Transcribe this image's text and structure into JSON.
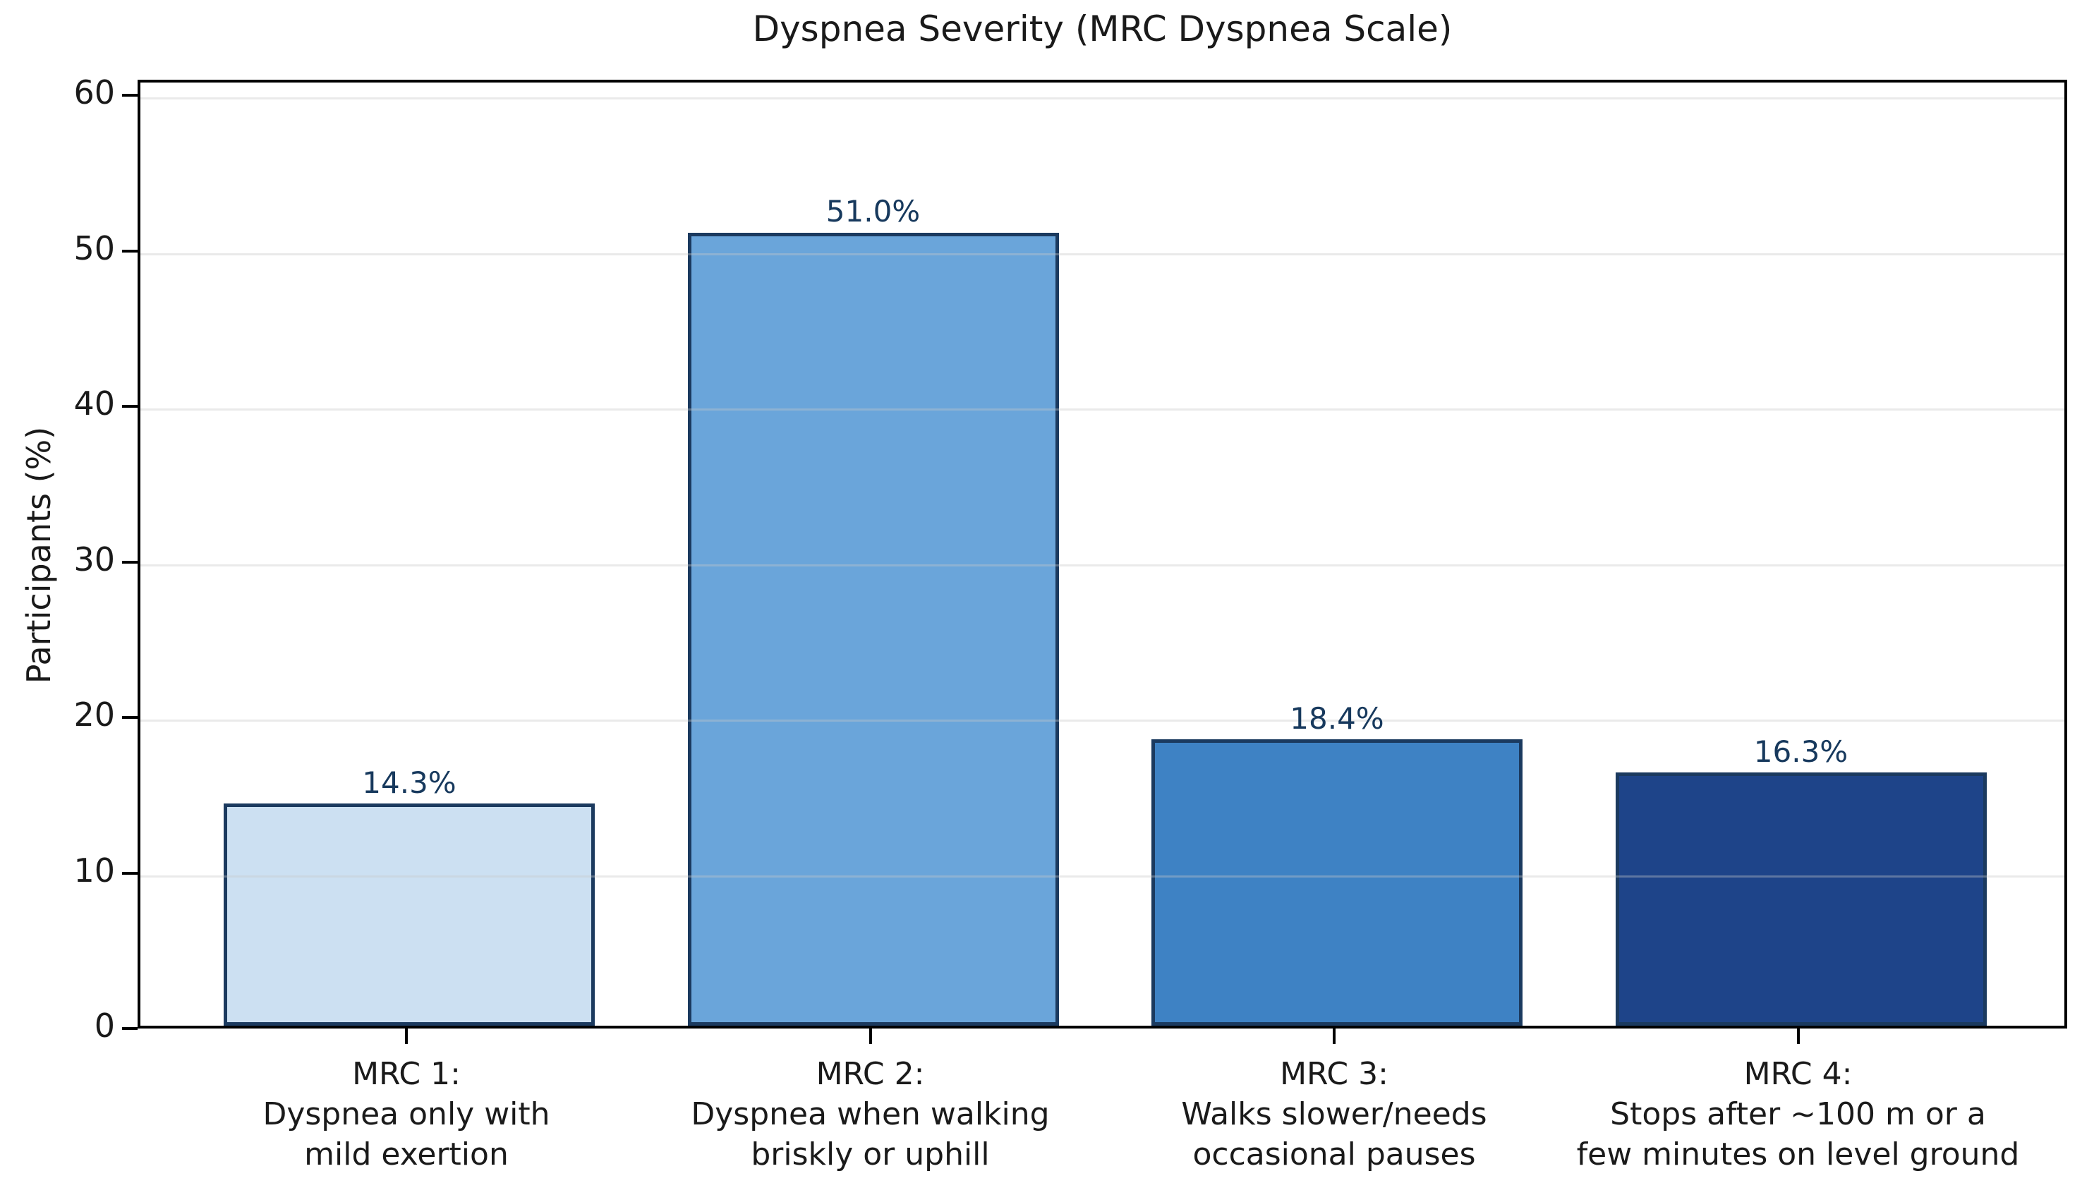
{
  "chart_data": {
    "type": "bar",
    "title": "Dyspnea Severity (MRC Dyspnea Scale)",
    "xlabel": "",
    "ylabel": "Participants (%)",
    "ylim": [
      0,
      61
    ],
    "yticks": [
      0,
      10,
      20,
      30,
      40,
      50,
      60
    ],
    "grid": "horizontal-light",
    "legend": "none",
    "categories": [
      [
        "MRC 1:",
        "Dyspnea only with",
        "mild exertion"
      ],
      [
        "MRC 2:",
        "Dyspnea when walking",
        "briskly or uphill"
      ],
      [
        "MRC 3:",
        "Walks slower/needs",
        "occasional pauses"
      ],
      [
        "MRC 4:",
        "Stops after ~100 m or a",
        "few minutes on level ground"
      ]
    ],
    "values": [
      14.3,
      51.0,
      18.4,
      16.3
    ],
    "value_labels": [
      "14.3%",
      "51.0%",
      "18.4%",
      "16.3%"
    ],
    "colors": {
      "bar_fills": [
        "#cce0f2",
        "#6aa5da",
        "#3e82c4",
        "#1e4489"
      ],
      "bar_edge": "#1b3a5f",
      "value_label": "#17395d",
      "grid_line": "#e8e8e8",
      "axis": "#000000",
      "text": "#1a1a1a"
    }
  }
}
